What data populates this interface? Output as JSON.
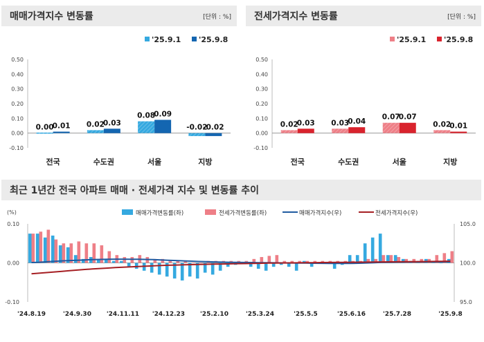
{
  "panels": {
    "sale": {
      "title": "매매가격지수 변동률",
      "unit": "[단위 : %]"
    },
    "jeonse": {
      "title": "전세가격지수 변동률",
      "unit": "[단위 : %]"
    },
    "trend": {
      "title": "최근 1년간 전국 아파트 매매 · 전세가격 지수 및 변동률 추이"
    }
  },
  "colors": {
    "sale_prev": "#35a9e0",
    "sale_curr": "#1466b1",
    "jeonse_prev": "#ee7f87",
    "jeonse_curr": "#d9232d",
    "sale_index_line": "#1f5aa0",
    "jeonse_index_line": "#a51e22"
  },
  "chart_data": [
    {
      "type": "bar",
      "title": "매매가격지수 변동률",
      "unit": "[단위 : %]",
      "categories": [
        "전국",
        "수도권",
        "서울",
        "지방"
      ],
      "series": [
        {
          "name": "'25.9.1",
          "values": [
            0.0,
            0.02,
            0.08,
            -0.02
          ],
          "labels": [
            "0.00",
            "0.02",
            "0.08",
            "-0.02"
          ]
        },
        {
          "name": "'25.9.8",
          "values": [
            0.01,
            0.03,
            0.09,
            -0.02
          ],
          "labels": [
            "0.01",
            "0.03",
            "0.09",
            "-0.02"
          ]
        }
      ],
      "ylim": [
        -0.1,
        0.5
      ],
      "yticks": [
        "0.50",
        "0.40",
        "0.30",
        "0.20",
        "0.10",
        "0.00",
        "-0.10"
      ],
      "legend": "top-right"
    },
    {
      "type": "bar",
      "title": "전세가격지수 변동률",
      "unit": "[단위 : %]",
      "categories": [
        "전국",
        "수도권",
        "서울",
        "지방"
      ],
      "series": [
        {
          "name": "'25.9.1",
          "values": [
            0.02,
            0.03,
            0.07,
            0.02
          ],
          "labels": [
            "0.02",
            "0.03",
            "0.07",
            "0.02"
          ]
        },
        {
          "name": "'25.9.8",
          "values": [
            0.03,
            0.04,
            0.07,
            0.01
          ],
          "labels": [
            "0.03",
            "0.04",
            "0.07",
            "0.01"
          ]
        }
      ],
      "ylim": [
        -0.1,
        0.5
      ],
      "yticks": [
        "0.50",
        "0.40",
        "0.30",
        "0.20",
        "0.10",
        "0.00",
        "-0.10"
      ],
      "legend": "top-right"
    },
    {
      "type": "bar",
      "title": "최근 1년간 전국 아파트 매매 · 전세가격 지수 및 변동률 추이",
      "left_axis_label": "(%)",
      "ylim_left": [
        -0.1,
        0.1
      ],
      "yticks_left": [
        "0.10",
        "0.00",
        "-0.10"
      ],
      "ylim_right": [
        95.0,
        105.0
      ],
      "yticks_right": [
        "105.0",
        "100.0",
        "95.0"
      ],
      "x_ticks": [
        "'24.8.19",
        "'24.9.30",
        "'24.11.11",
        "'24.12.23",
        "'25.2.10",
        "'25.3.24",
        "'25.5.5",
        "'25.6.16",
        "'25.7.28",
        "'25.9.8"
      ],
      "x_tick_index": [
        0,
        6,
        12,
        18,
        24,
        30,
        36,
        42,
        48,
        55
      ],
      "legend": "top",
      "series": [
        {
          "name": "매매가격변동률(좌)",
          "kind": "bar",
          "axis": "left",
          "values": [
            0.075,
            0.075,
            0.065,
            0.07,
            0.045,
            0.04,
            0.02,
            0.01,
            0.015,
            0.01,
            0.01,
            0.005,
            0.005,
            -0.01,
            -0.015,
            -0.02,
            -0.025,
            -0.03,
            -0.035,
            -0.04,
            -0.045,
            -0.035,
            -0.04,
            -0.025,
            -0.03,
            -0.02,
            -0.01,
            -0.005,
            0.0,
            -0.01,
            -0.015,
            -0.02,
            -0.01,
            -0.005,
            -0.01,
            -0.02,
            0.005,
            -0.01,
            0.0,
            0.0,
            -0.015,
            -0.005,
            0.02,
            0.02,
            0.05,
            0.065,
            0.075,
            0.02,
            0.02,
            0.01,
            0.005,
            0.005,
            0.01,
            0.005,
            0.0,
            0.01
          ]
        },
        {
          "name": "전세가격변동률(좌)",
          "kind": "bar",
          "axis": "left",
          "values": [
            0.075,
            0.08,
            0.085,
            0.06,
            0.05,
            0.05,
            0.055,
            0.05,
            0.05,
            0.045,
            0.03,
            0.02,
            0.015,
            0.015,
            0.02,
            0.015,
            0.01,
            0.01,
            0.005,
            0.005,
            0.005,
            0.0,
            0.0,
            0.005,
            0.005,
            0.005,
            0.005,
            0.005,
            0.005,
            0.01,
            0.015,
            0.018,
            0.02,
            0.005,
            0.005,
            0.005,
            0.005,
            0.005,
            0.005,
            0.005,
            0.005,
            0.005,
            0.005,
            0.005,
            0.01,
            0.01,
            0.02,
            0.02,
            0.015,
            0.01,
            0.01,
            0.01,
            0.01,
            0.02,
            0.025,
            0.03
          ]
        },
        {
          "name": "매매가격지수(우)",
          "kind": "line",
          "axis": "right",
          "values": [
            100.04,
            100.08,
            100.14,
            100.2,
            100.26,
            100.3,
            100.34,
            100.38,
            100.42,
            100.44,
            100.46,
            100.48,
            100.48,
            100.47,
            100.46,
            100.44,
            100.42,
            100.38,
            100.34,
            100.3,
            100.26,
            100.22,
            100.18,
            100.15,
            100.12,
            100.1,
            100.08,
            100.06,
            100.05,
            100.04,
            100.03,
            100.02,
            100.01,
            100.0,
            99.99,
            99.98,
            99.97,
            99.96,
            99.95,
            99.94,
            99.93,
            99.93,
            99.94,
            99.96,
            99.99,
            100.02,
            100.06,
            100.08,
            100.1,
            100.11,
            100.12,
            100.12,
            100.13,
            100.13,
            100.13,
            100.14
          ]
        },
        {
          "name": "전세가격지수(우)",
          "kind": "line",
          "axis": "right",
          "values": [
            98.6,
            98.68,
            98.76,
            98.84,
            98.92,
            99.0,
            99.08,
            99.16,
            99.22,
            99.28,
            99.34,
            99.4,
            99.45,
            99.5,
            99.54,
            99.58,
            99.62,
            99.66,
            99.7,
            99.73,
            99.76,
            99.78,
            99.8,
            99.82,
            99.84,
            99.86,
            99.88,
            99.9,
            99.91,
            99.93,
            99.95,
            99.97,
            99.98,
            99.99,
            100.0,
            100.01,
            100.02,
            100.03,
            100.04,
            100.05,
            100.06,
            100.07,
            100.08,
            100.09,
            100.1,
            100.11,
            100.12,
            100.13,
            100.14,
            100.15,
            100.16,
            100.17,
            100.18,
            100.19,
            100.2,
            100.22
          ]
        }
      ]
    }
  ]
}
